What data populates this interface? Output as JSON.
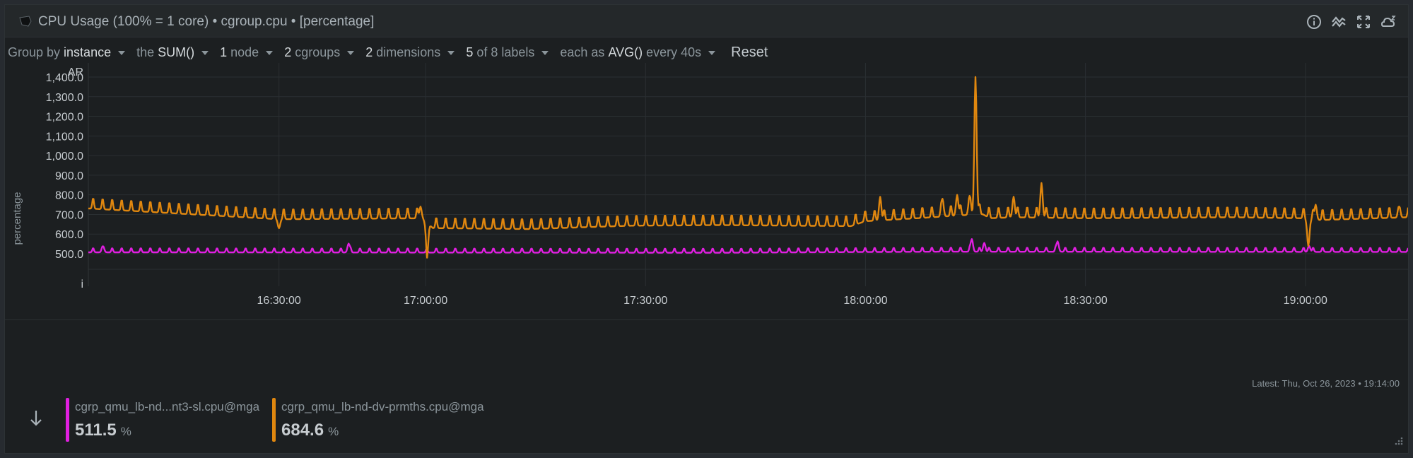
{
  "title": "CPU Usage (100% = 1 core) • cgroup.cpu • [percentage]",
  "title_icons": [
    "info-icon",
    "correlate-icon",
    "fullscreen-icon",
    "alert-icon"
  ],
  "toolbar": {
    "group_by_prefix": "Group by",
    "group_by_value": "instance",
    "agg_prefix": "the",
    "agg_value": "SUM()",
    "nodes_count": "1",
    "nodes_label": "node",
    "cgroups_count": "2",
    "cgroups_label": "cgroups",
    "dimensions_count": "2",
    "dimensions_label": "dimensions",
    "labels_count": "5",
    "labels_label": "of 8 labels",
    "each_prefix": "each as",
    "each_value": "AVG()",
    "every_label": "every 40s",
    "reset_label": "Reset"
  },
  "latest_label": "Latest:  Thu, Oct 26, 2023 • 19:14:00",
  "legend": {
    "toggle_icon": "arrow-down-icon",
    "items": [
      {
        "name": "cgrp_qmu_lb-nd...nt3-sl.cpu@mga",
        "value": "511.5",
        "unit": "%",
        "color": "#e01fe0"
      },
      {
        "name": "cgrp_qmu_lb-nd-dv-prmths.cpu@mga",
        "value": "684.6",
        "unit": "%",
        "color": "#e0870f"
      }
    ]
  },
  "chart_data": {
    "type": "line",
    "ylabel": "percentage",
    "y_top_label": "AR",
    "y_bottom_label": "i",
    "yticks": [
      "1,400.0",
      "1,300.0",
      "1,200.0",
      "1,100.0",
      "1,000.0",
      "900.0",
      "800.0",
      "700.0",
      "600.0",
      "500.0"
    ],
    "ytick_values": [
      1400,
      1300,
      1200,
      1100,
      1000,
      900,
      800,
      700,
      600,
      500
    ],
    "xticks": [
      "16:30:00",
      "17:00:00",
      "17:30:00",
      "18:00:00",
      "18:30:00",
      "19:00:00"
    ],
    "xtick_minutes": [
      1000,
      1020,
      1050,
      1080,
      1110,
      1140
    ],
    "xlim_minutes": [
      974,
      1154
    ],
    "ylim": [
      420,
      1500
    ],
    "grid": true,
    "series": [
      {
        "name": "cgrp_qmu_lb-nd-dv-prmths.cpu@mga",
        "color": "#e0870f",
        "base": [
          [
            974,
            750
          ],
          [
            1000,
            695
          ],
          [
            1019.5,
            700
          ],
          [
            1021,
            650
          ],
          [
            1034,
            645
          ],
          [
            1048,
            662
          ],
          [
            1060,
            665
          ],
          [
            1078,
            660
          ],
          [
            1080,
            685
          ],
          [
            1087,
            700
          ],
          [
            1093,
            715
          ],
          [
            1096,
            720
          ],
          [
            1097,
            700
          ],
          [
            1100,
            705
          ],
          [
            1110,
            700
          ],
          [
            1130,
            705
          ],
          [
            1139.5,
            700
          ],
          [
            1141,
            690
          ],
          [
            1154,
            705
          ]
        ],
        "amp": 55,
        "period_min": 1.3,
        "spikes": [
          {
            "t": 1000,
            "v": 630
          },
          {
            "t": 1019.3,
            "v": 740
          },
          {
            "t": 1020.2,
            "v": 480
          },
          {
            "t": 1082,
            "v": 790
          },
          {
            "t": 1090.5,
            "v": 780
          },
          {
            "t": 1092.5,
            "v": 800
          },
          {
            "t": 1094.2,
            "v": 795
          },
          {
            "t": 1095.0,
            "v": 1400
          },
          {
            "t": 1100.2,
            "v": 790
          },
          {
            "t": 1104.0,
            "v": 860
          },
          {
            "t": 1140.4,
            "v": 540
          },
          {
            "t": 1141.4,
            "v": 750
          },
          {
            "t": 1152.8,
            "v": 740
          }
        ],
        "latest": 684.6
      },
      {
        "name": "cgrp_qmu_lb-nd...nt3-sl.cpu@mga",
        "color": "#e01fe0",
        "base": [
          [
            974,
            515
          ],
          [
            1060,
            513
          ],
          [
            1090,
            518
          ],
          [
            1154,
            517
          ]
        ],
        "amp": 22,
        "period_min": 1.3,
        "spikes": [
          {
            "t": 976,
            "v": 538
          },
          {
            "t": 1009.5,
            "v": 552
          },
          {
            "t": 1094.5,
            "v": 575
          },
          {
            "t": 1096.2,
            "v": 555
          },
          {
            "t": 1106.2,
            "v": 563
          },
          {
            "t": 1140.5,
            "v": 540
          }
        ],
        "latest": 511.5
      }
    ]
  }
}
